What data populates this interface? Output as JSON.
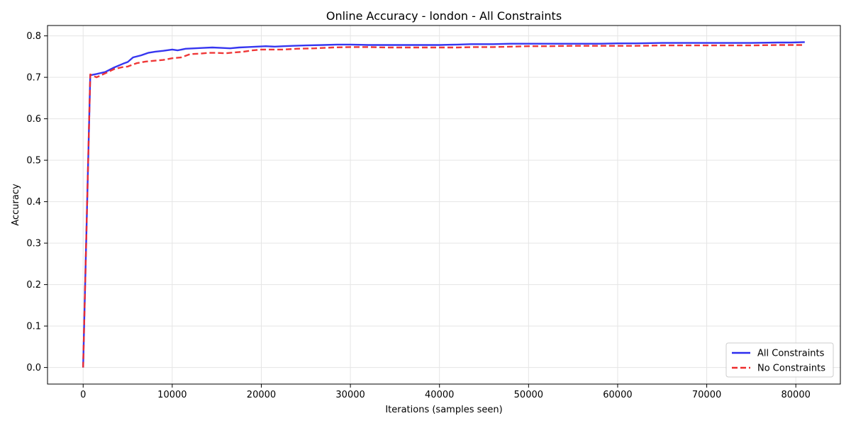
{
  "chart_data": {
    "type": "line",
    "title": "Online Accuracy - london - All Constraints",
    "xlabel": "Iterations (samples seen)",
    "ylabel": "Accuracy",
    "xlim": [
      -4000,
      85000
    ],
    "ylim": [
      -0.04,
      0.825
    ],
    "xticks": [
      0,
      10000,
      20000,
      30000,
      40000,
      50000,
      60000,
      70000,
      80000
    ],
    "xtick_labels": [
      "0",
      "10000",
      "20000",
      "30000",
      "40000",
      "50000",
      "60000",
      "70000",
      "80000"
    ],
    "yticks": [
      0.0,
      0.1,
      0.2,
      0.3,
      0.4,
      0.5,
      0.6,
      0.7,
      0.8
    ],
    "ytick_labels": [
      "0.0",
      "0.1",
      "0.2",
      "0.3",
      "0.4",
      "0.5",
      "0.6",
      "0.7",
      "0.8"
    ],
    "grid": true,
    "legend_position": "bottom-right",
    "series": [
      {
        "name": "All Constraints",
        "color": "#2b2bef",
        "style": "solid",
        "x": [
          0,
          800,
          1500,
          2500,
          3500,
          4500,
          5000,
          5600,
          6500,
          7300,
          8100,
          9000,
          10000,
          10600,
          11500,
          12500,
          13500,
          14500,
          15500,
          16500,
          17500,
          18500,
          19500,
          20500,
          21500,
          22500,
          23500,
          25000,
          27000,
          28500,
          30000,
          32000,
          34000,
          36000,
          38000,
          40000,
          42000,
          43500,
          44500,
          46000,
          48000,
          50000,
          52000,
          55000,
          58000,
          60000,
          62000,
          65000,
          68000,
          70000,
          72000,
          75000,
          78000,
          79500,
          81000
        ],
        "y": [
          0.0,
          0.705,
          0.708,
          0.713,
          0.724,
          0.733,
          0.737,
          0.748,
          0.753,
          0.759,
          0.762,
          0.764,
          0.767,
          0.765,
          0.769,
          0.77,
          0.771,
          0.772,
          0.771,
          0.77,
          0.772,
          0.773,
          0.774,
          0.775,
          0.774,
          0.775,
          0.776,
          0.777,
          0.778,
          0.779,
          0.779,
          0.778,
          0.778,
          0.778,
          0.778,
          0.778,
          0.779,
          0.78,
          0.78,
          0.78,
          0.781,
          0.781,
          0.781,
          0.781,
          0.781,
          0.782,
          0.782,
          0.783,
          0.783,
          0.783,
          0.783,
          0.783,
          0.784,
          0.784,
          0.785
        ]
      },
      {
        "name": "No Constraints",
        "color": "#ee2c2c",
        "style": "dashed",
        "x": [
          0,
          800,
          1500,
          2500,
          3500,
          4500,
          5000,
          6000,
          7000,
          8000,
          9000,
          10000,
          11000,
          12000,
          13000,
          14000,
          15000,
          16000,
          17000,
          18000,
          19000,
          20000,
          21000,
          22500,
          24000,
          26000,
          28000,
          30000,
          32000,
          34000,
          36000,
          38000,
          40000,
          42000,
          44000,
          46000,
          48000,
          50000,
          52000,
          55000,
          58000,
          60000,
          62000,
          65000,
          68000,
          70000,
          72000,
          75000,
          78000,
          81000
        ],
        "y": [
          0.0,
          0.707,
          0.7,
          0.71,
          0.72,
          0.725,
          0.726,
          0.734,
          0.738,
          0.74,
          0.742,
          0.746,
          0.748,
          0.756,
          0.757,
          0.759,
          0.759,
          0.758,
          0.76,
          0.762,
          0.765,
          0.767,
          0.767,
          0.767,
          0.769,
          0.77,
          0.772,
          0.773,
          0.773,
          0.772,
          0.772,
          0.772,
          0.772,
          0.772,
          0.773,
          0.773,
          0.774,
          0.775,
          0.775,
          0.776,
          0.776,
          0.776,
          0.776,
          0.777,
          0.777,
          0.777,
          0.777,
          0.777,
          0.778,
          0.778
        ]
      }
    ]
  }
}
